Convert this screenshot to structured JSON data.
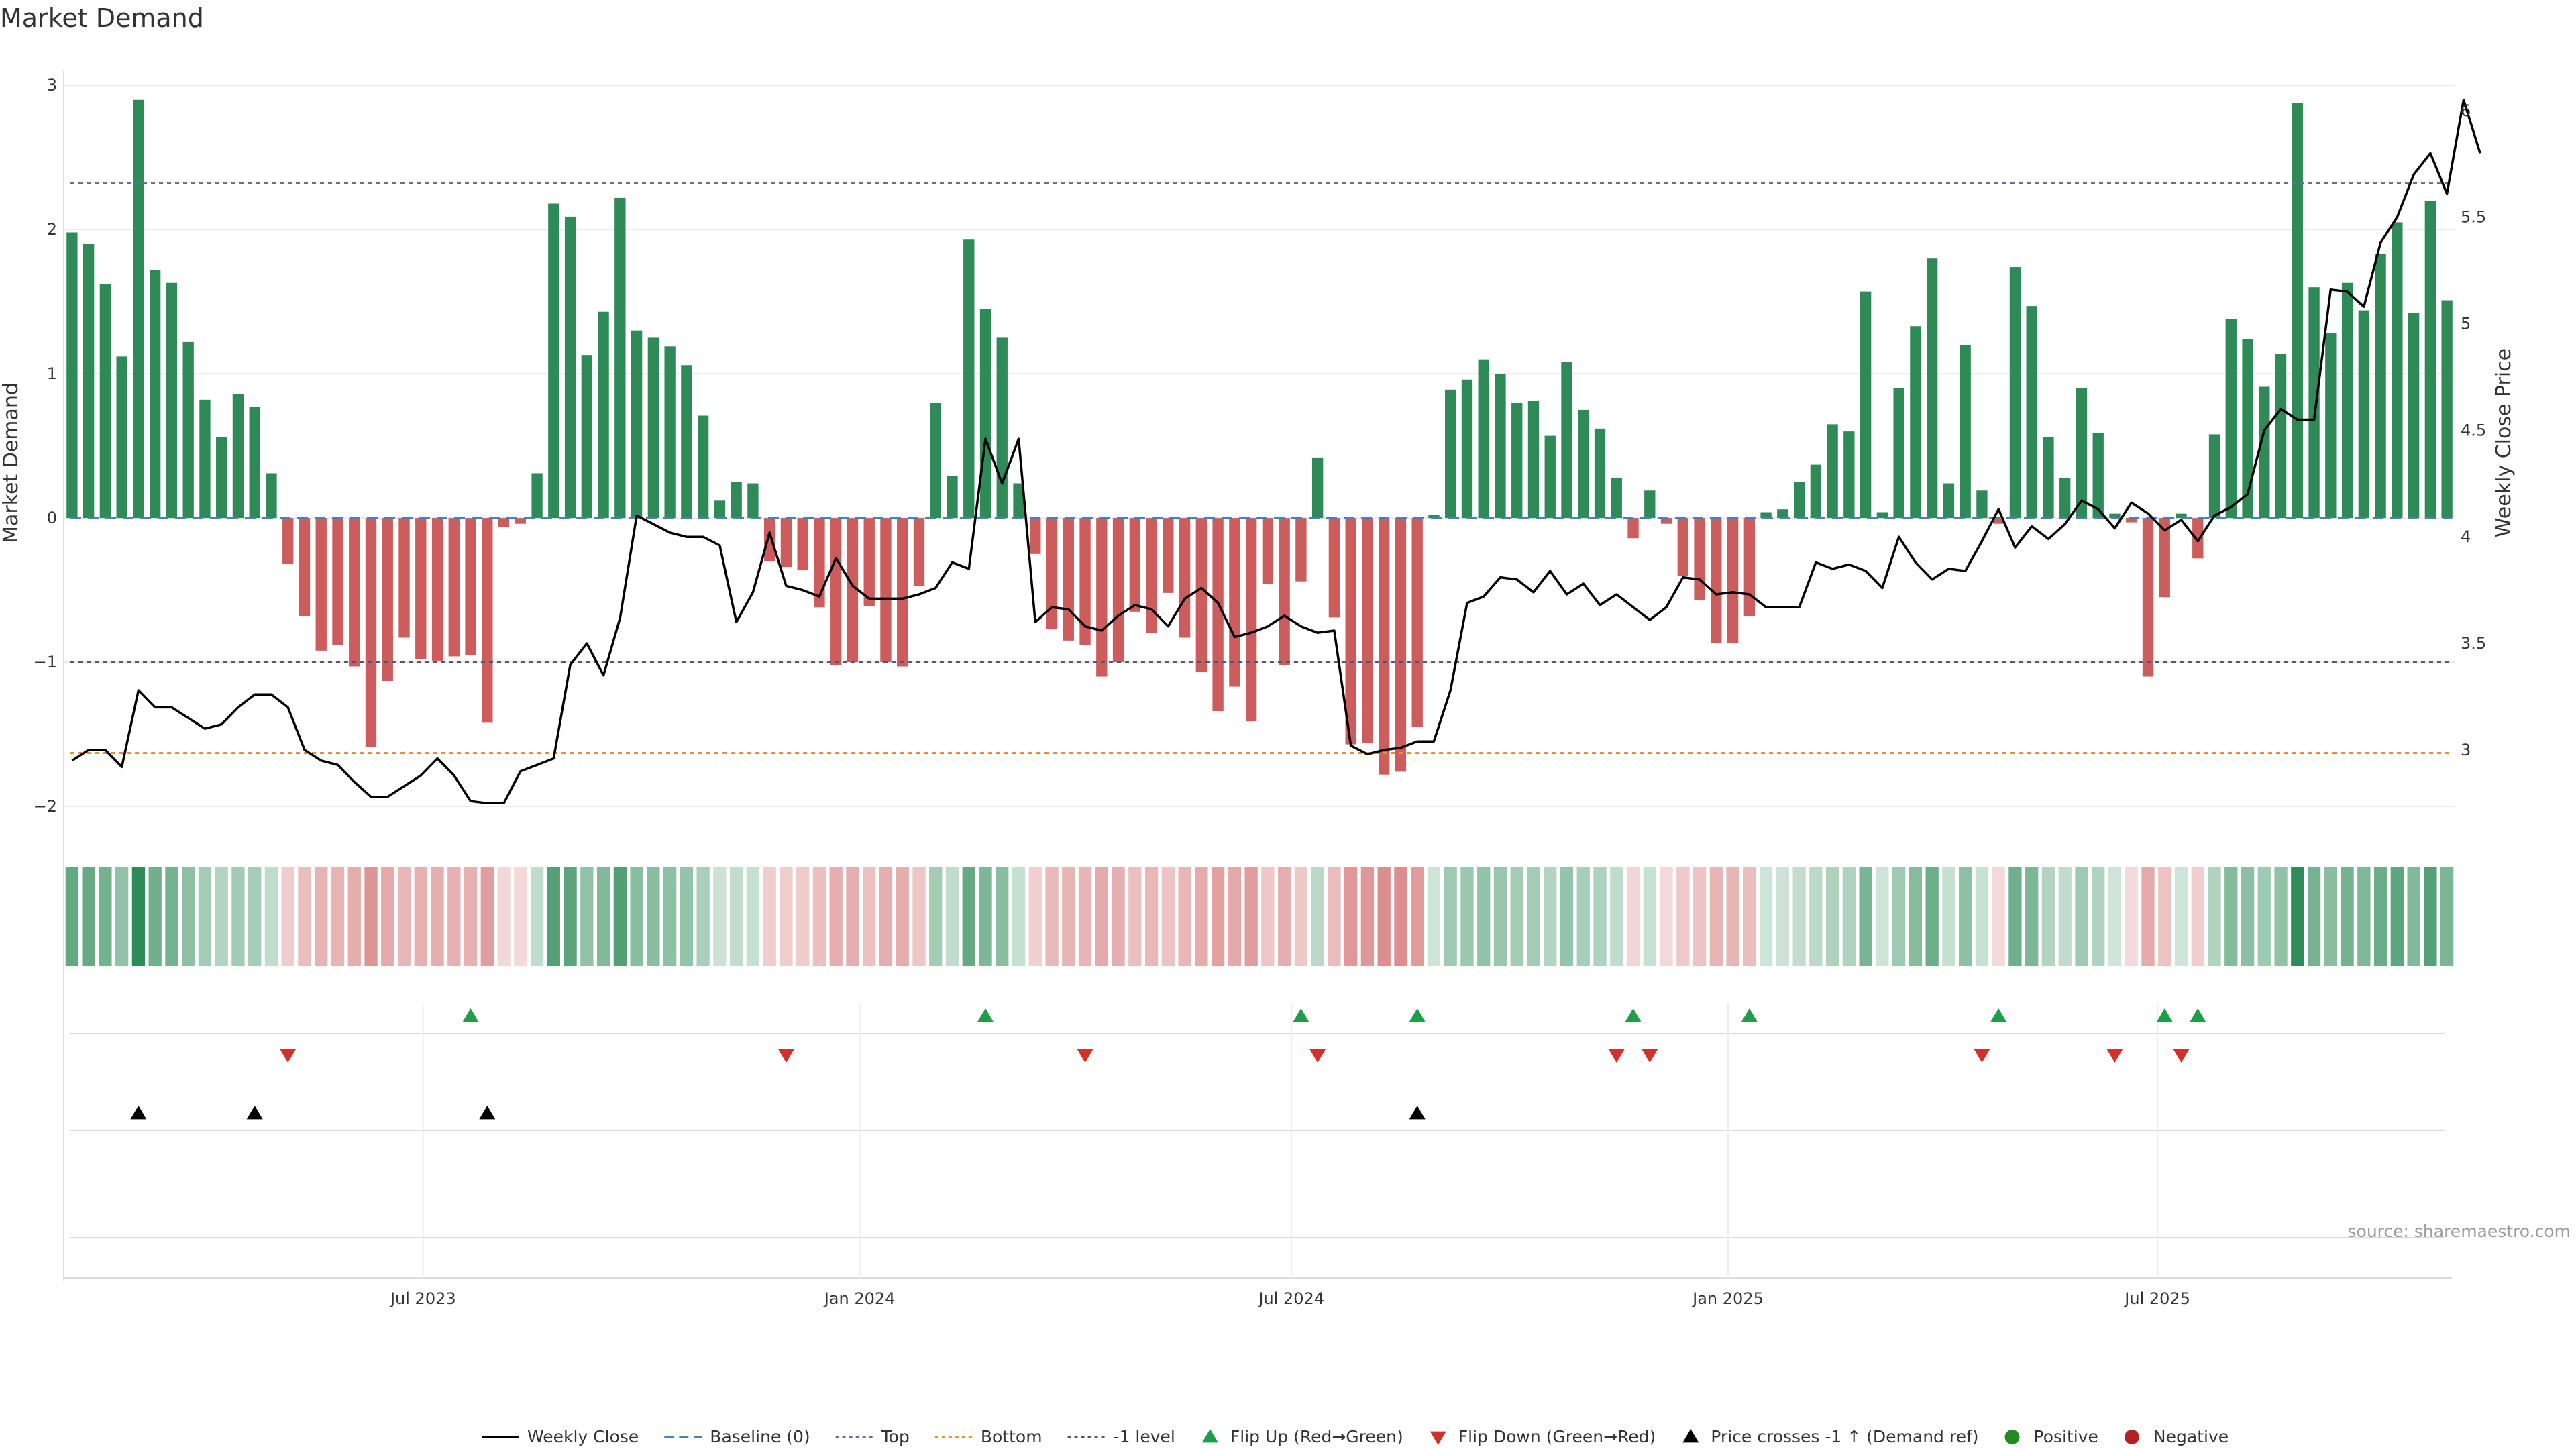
{
  "title": "Market Demand",
  "source": "source: sharemaestro.com",
  "colors": {
    "positive": "#2e8b57",
    "negative": "#cd5c5c",
    "close": "#000000",
    "baseline": "#4682b4",
    "top": "#6a6aa0",
    "bottom": "#e69138",
    "minus1": "#555570",
    "flip_up": "#1f9e4a",
    "flip_down": "#d0312d",
    "cross": "#000000",
    "pos_dot": "#228b22",
    "neg_dot": "#b22222"
  },
  "chart_data": {
    "type": "bar",
    "x_start": "2023-02-03",
    "interval_days": 7,
    "left_axis": {
      "label": "Market Demand",
      "range": [
        -2.2,
        3.0
      ],
      "ticks": [
        -2,
        -1,
        0,
        1,
        2,
        3
      ]
    },
    "right_axis": {
      "label": "Weekly Close Price",
      "range": [
        2.6,
        6.2
      ],
      "ticks": [
        3,
        3.5,
        4,
        4.5,
        5,
        5.5,
        6
      ]
    },
    "x_ticks": [
      {
        "label": "Jul 2023",
        "date": "2023-07-01"
      },
      {
        "label": "Jan 2024",
        "date": "2024-01-01"
      },
      {
        "label": "Jul 2024",
        "date": "2024-07-01"
      },
      {
        "label": "Jan 2025",
        "date": "2025-01-01"
      },
      {
        "label": "Jul 2025",
        "date": "2025-07-01"
      }
    ],
    "reference_lines": {
      "top": 2.32,
      "bottom": -1.63,
      "minus1": -1.0,
      "baseline": 0
    },
    "demand": [
      1.98,
      1.9,
      1.62,
      1.12,
      2.9,
      1.72,
      1.63,
      1.22,
      0.82,
      0.56,
      0.86,
      0.77,
      0.31,
      -0.32,
      -0.68,
      -0.92,
      -0.88,
      -1.03,
      -1.59,
      -1.13,
      -0.83,
      -0.98,
      -0.99,
      -0.96,
      -0.95,
      -1.42,
      -0.06,
      -0.04,
      0.31,
      2.18,
      2.09,
      1.13,
      1.43,
      2.22,
      1.3,
      1.25,
      1.19,
      1.06,
      0.71,
      0.12,
      0.25,
      0.24,
      -0.3,
      -0.34,
      -0.36,
      -0.62,
      -1.02,
      -1.0,
      -0.61,
      -1.0,
      -1.03,
      -0.47,
      0.8,
      0.29,
      1.93,
      1.45,
      1.25,
      0.24,
      -0.25,
      -0.77,
      -0.85,
      -0.88,
      -1.1,
      -1.0,
      -0.65,
      -0.8,
      -0.52,
      -0.83,
      -1.07,
      -1.34,
      -1.17,
      -1.41,
      -0.46,
      -1.02,
      -0.44,
      0.42,
      -0.69,
      -1.57,
      -1.56,
      -1.78,
      -1.76,
      -1.45,
      0.02,
      0.89,
      0.96,
      1.1,
      1.0,
      0.8,
      0.81,
      0.57,
      1.08,
      0.75,
      0.62,
      0.28,
      -0.14,
      0.19,
      -0.04,
      -0.4,
      -0.57,
      -0.87,
      -0.87,
      -0.68,
      0.04,
      0.06,
      0.25,
      0.37,
      0.65,
      0.6,
      1.57,
      0.04,
      0.9,
      1.33,
      1.8,
      0.24,
      1.2,
      0.19,
      -0.04,
      1.74,
      1.47,
      0.56,
      0.28,
      0.9,
      0.59,
      0.03,
      -0.03,
      -1.1,
      -0.55,
      0.03,
      -0.28,
      0.58,
      1.38,
      1.24,
      0.91,
      1.14,
      2.88,
      1.6,
      1.28,
      1.63,
      1.44,
      1.83,
      2.05,
      1.42,
      2.2,
      1.51
    ],
    "close": [
      2.95,
      3.0,
      3.0,
      2.92,
      3.28,
      3.2,
      3.2,
      3.15,
      3.1,
      3.12,
      3.2,
      3.26,
      3.26,
      3.2,
      3.0,
      2.95,
      2.93,
      2.85,
      2.78,
      2.78,
      2.83,
      2.88,
      2.96,
      2.88,
      2.76,
      2.75,
      2.75,
      2.9,
      2.93,
      2.96,
      3.4,
      3.5,
      3.35,
      3.62,
      4.1,
      4.06,
      4.02,
      4.0,
      4.0,
      3.96,
      3.6,
      3.74,
      4.02,
      3.77,
      3.75,
      3.72,
      3.9,
      3.77,
      3.71,
      3.71,
      3.71,
      3.73,
      3.76,
      3.88,
      3.85,
      4.46,
      4.25,
      4.46,
      3.6,
      3.67,
      3.66,
      3.58,
      3.56,
      3.63,
      3.68,
      3.66,
      3.58,
      3.71,
      3.76,
      3.69,
      3.53,
      3.55,
      3.58,
      3.63,
      3.58,
      3.55,
      3.56,
      3.02,
      2.98,
      3.0,
      3.01,
      3.04,
      3.04,
      3.28,
      3.69,
      3.72,
      3.81,
      3.8,
      3.74,
      3.84,
      3.73,
      3.78,
      3.68,
      3.73,
      3.67,
      3.61,
      3.67,
      3.81,
      3.8,
      3.73,
      3.74,
      3.73,
      3.67,
      3.67,
      3.67,
      3.88,
      3.85,
      3.87,
      3.84,
      3.76,
      4.0,
      3.88,
      3.8,
      3.85,
      3.84,
      3.98,
      4.13,
      3.95,
      4.05,
      3.99,
      4.06,
      4.17,
      4.13,
      4.04,
      4.16,
      4.11,
      4.03,
      4.08,
      3.98,
      4.1,
      4.14,
      4.2,
      4.5,
      4.6,
      4.55,
      4.55,
      5.16,
      5.15,
      5.08,
      5.38,
      5.5,
      5.7,
      5.8,
      5.61,
      6.05,
      5.8
    ],
    "flip_up": [
      "2023-07-21",
      "2024-02-23",
      "2024-07-05",
      "2024-08-23",
      "2024-11-22",
      "2025-01-10",
      "2025-04-25",
      "2025-07-04",
      "2025-07-18"
    ],
    "flip_down": [
      "2023-05-05",
      "2023-12-01",
      "2024-04-05",
      "2024-07-12",
      "2024-11-15",
      "2024-11-29",
      "2025-04-18",
      "2025-06-13",
      "2025-07-11"
    ],
    "price_crosses": [
      "2023-03-03",
      "2023-04-21",
      "2023-07-28",
      "2024-08-23"
    ]
  },
  "legend": [
    {
      "label": "Weekly Close",
      "kind": "line-solid",
      "color_key": "close"
    },
    {
      "label": "Baseline (0)",
      "kind": "line-dash",
      "color_key": "baseline"
    },
    {
      "label": "Top",
      "kind": "line-dot",
      "color_key": "top"
    },
    {
      "label": "Bottom",
      "kind": "line-dot",
      "color_key": "bottom"
    },
    {
      "label": "-1 level",
      "kind": "line-dot",
      "color_key": "minus1"
    },
    {
      "label": "Flip Up (Red→Green)",
      "kind": "tri-up",
      "color_key": "flip_up"
    },
    {
      "label": "Flip Down (Green→Red)",
      "kind": "tri-down",
      "color_key": "flip_down"
    },
    {
      "label": "Price crosses -1 ↑ (Demand ref)",
      "kind": "tri-up",
      "color_key": "cross"
    },
    {
      "label": "Positive",
      "kind": "dot",
      "color_key": "pos_dot"
    },
    {
      "label": "Negative",
      "kind": "dot",
      "color_key": "neg_dot"
    }
  ]
}
